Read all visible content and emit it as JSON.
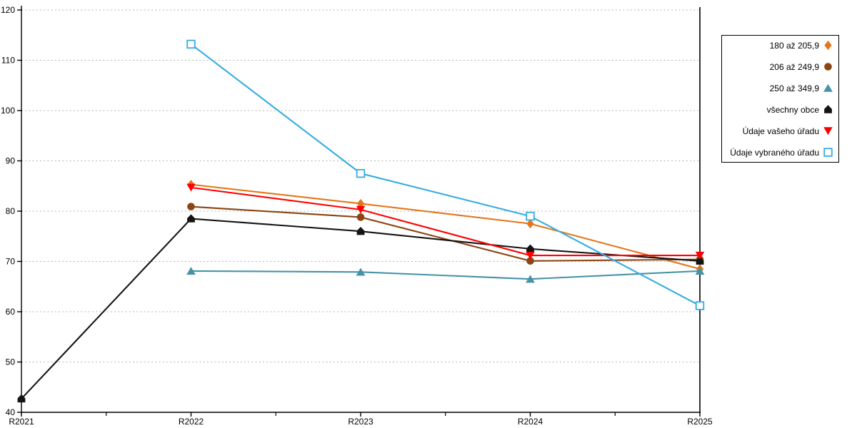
{
  "chart_data": {
    "type": "line",
    "title": "",
    "xlabel": "",
    "ylabel": "",
    "categories": [
      "R2021",
      "R2022",
      "R2023",
      "R2024",
      "R2025"
    ],
    "ylim": [
      40,
      120
    ],
    "y_tick_step": 10,
    "grid": "horizontal-dashed",
    "legend_position": "right-outside",
    "highlight_vline_category": "R2025",
    "colors": {
      "axis": "#000000",
      "grid": "#B4B4B4",
      "background": "#FFFFFF",
      "highlight_line": "#000000"
    },
    "series": [
      {
        "name": "180 až 205,9",
        "marker": "diamond",
        "color": "#E4771A",
        "values": [
          null,
          85.3,
          81.5,
          77.5,
          68.5
        ]
      },
      {
        "name": "206 až 249,9",
        "marker": "circle",
        "color": "#8B4513",
        "values": [
          null,
          80.9,
          78.8,
          70.1,
          70.4
        ]
      },
      {
        "name": "250 až 349,9",
        "marker": "triangle-up",
        "color": "#4792A8",
        "values": [
          null,
          68.1,
          67.9,
          66.5,
          68.1
        ]
      },
      {
        "name": "všechny obce",
        "marker": "pentagon",
        "color": "#141414",
        "values": [
          42.7,
          78.5,
          76.0,
          72.5,
          70.1
        ]
      },
      {
        "name": "Údaje vašeho úřadu",
        "marker": "triangle-down",
        "color": "#FE0000",
        "values": [
          null,
          84.7,
          80.3,
          71.2,
          71.2
        ]
      },
      {
        "name": "Údaje vybraného úřadu",
        "marker": "square-open",
        "color": "#36ACE2",
        "values": [
          null,
          113.2,
          87.5,
          79.0,
          61.2
        ]
      }
    ]
  }
}
